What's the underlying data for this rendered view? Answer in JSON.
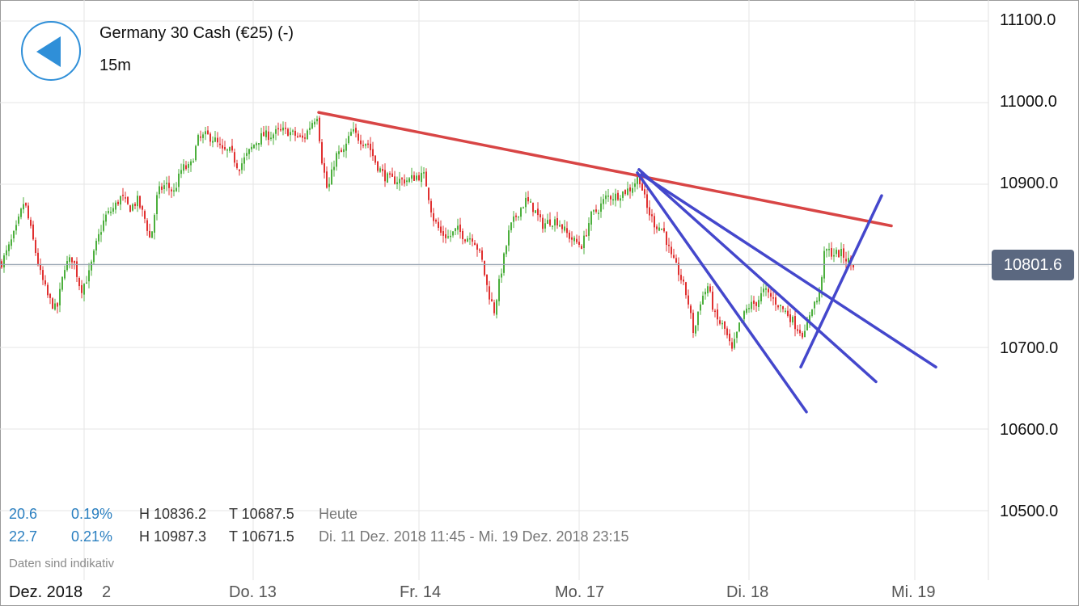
{
  "header": {
    "instrument": "Germany 30 Cash (€25) (-)",
    "timeframe": "15m"
  },
  "stats": {
    "today": {
      "change": "20.6",
      "change_pct": "0.19%",
      "high": "H 10836.2",
      "low": "T 10687.5",
      "range_label": "Heute"
    },
    "period": {
      "change": "22.7",
      "change_pct": "0.21%",
      "high": "H 10987.3",
      "low": "T 10671.5",
      "range_label": "Di. 11 Dez. 2018 11:45 - Mi. 19 Dez. 2018 23:15"
    }
  },
  "disclaimer": "Daten sind indikativ",
  "current_price": "10801.6",
  "colors": {
    "up": "#4caf3d",
    "down": "#e03030",
    "resistance": "#d84545",
    "trendlines": "#4447cc",
    "price_line": "#9aa6b4",
    "grid": "#e6e6e6",
    "accent": "#2f8fd8"
  },
  "chart_data": {
    "type": "candlestick",
    "ylim": [
      10450,
      11120
    ],
    "y_ticks": [
      "11100.0",
      "11000.0",
      "10900.0",
      "10800.0",
      "10700.0",
      "10600.0",
      "10500.0"
    ],
    "x_labels": [
      "Dez. 2018",
      "2",
      "Do. 13",
      "Fr. 14",
      "Mo. 17",
      "Di. 18",
      "Mi. 19"
    ],
    "current_price": 10801.6,
    "series": [
      {
        "name": "price",
        "path": [
          [
            0,
            10800
          ],
          [
            10,
            10820
          ],
          [
            20,
            10845
          ],
          [
            30,
            10880
          ],
          [
            40,
            10835
          ],
          [
            50,
            10790
          ],
          [
            60,
            10760
          ],
          [
            70,
            10745
          ],
          [
            80,
            10800
          ],
          [
            90,
            10810
          ],
          [
            100,
            10770
          ],
          [
            110,
            10790
          ],
          [
            120,
            10830
          ],
          [
            130,
            10860
          ],
          [
            140,
            10870
          ],
          [
            150,
            10885
          ],
          [
            160,
            10870
          ],
          [
            170,
            10880
          ],
          [
            180,
            10855
          ],
          [
            186,
            10830
          ],
          [
            195,
            10890
          ],
          [
            205,
            10900
          ],
          [
            215,
            10890
          ],
          [
            225,
            10920
          ],
          [
            235,
            10920
          ],
          [
            245,
            10955
          ],
          [
            255,
            10960
          ],
          [
            265,
            10955
          ],
          [
            275,
            10940
          ],
          [
            285,
            10940
          ],
          [
            295,
            10920
          ],
          [
            305,
            10935
          ],
          [
            315,
            10950
          ],
          [
            325,
            10960
          ],
          [
            335,
            10960
          ],
          [
            345,
            10965
          ],
          [
            355,
            10965
          ],
          [
            365,
            10960
          ],
          [
            375,
            10955
          ],
          [
            385,
            10975
          ],
          [
            392,
            10985
          ],
          [
            398,
            10930
          ],
          [
            405,
            10890
          ],
          [
            415,
            10935
          ],
          [
            425,
            10940
          ],
          [
            435,
            10965
          ],
          [
            445,
            10955
          ],
          [
            455,
            10950
          ],
          [
            465,
            10925
          ],
          [
            475,
            10910
          ],
          [
            485,
            10905
          ],
          [
            495,
            10905
          ],
          [
            505,
            10905
          ],
          [
            515,
            10910
          ],
          [
            525,
            10910
          ],
          [
            535,
            10860
          ],
          [
            545,
            10840
          ],
          [
            555,
            10835
          ],
          [
            565,
            10845
          ],
          [
            575,
            10835
          ],
          [
            585,
            10835
          ],
          [
            595,
            10810
          ],
          [
            603,
            10770
          ],
          [
            611,
            10745
          ],
          [
            620,
            10795
          ],
          [
            630,
            10845
          ],
          [
            640,
            10865
          ],
          [
            650,
            10880
          ],
          [
            660,
            10870
          ],
          [
            670,
            10850
          ],
          [
            680,
            10855
          ],
          [
            690,
            10855
          ],
          [
            700,
            10840
          ],
          [
            710,
            10830
          ],
          [
            720,
            10825
          ],
          [
            730,
            10860
          ],
          [
            740,
            10870
          ],
          [
            750,
            10885
          ],
          [
            760,
            10885
          ],
          [
            770,
            10890
          ],
          [
            780,
            10895
          ],
          [
            790,
            10910
          ],
          [
            800,
            10870
          ],
          [
            810,
            10850
          ],
          [
            820,
            10845
          ],
          [
            830,
            10810
          ],
          [
            840,
            10790
          ],
          [
            850,
            10760
          ],
          [
            858,
            10715
          ],
          [
            865,
            10755
          ],
          [
            875,
            10775
          ],
          [
            885,
            10735
          ],
          [
            895,
            10725
          ],
          [
            905,
            10695
          ],
          [
            915,
            10730
          ],
          [
            925,
            10750
          ],
          [
            935,
            10755
          ],
          [
            945,
            10770
          ],
          [
            955,
            10760
          ],
          [
            965,
            10750
          ],
          [
            975,
            10740
          ],
          [
            985,
            10725
          ],
          [
            995,
            10715
          ],
          [
            1003,
            10750
          ],
          [
            1012,
            10760
          ],
          [
            1020,
            10820
          ],
          [
            1030,
            10815
          ],
          [
            1040,
            10815
          ],
          [
            1050,
            10805
          ],
          [
            1057,
            10800
          ]
        ]
      }
    ],
    "annotations": [
      {
        "name": "resistance",
        "color": "resistance",
        "x1": 394,
        "y1": 10988,
        "x2": 1102,
        "y2": 10849
      },
      {
        "name": "fan-1",
        "color": "trendlines",
        "x1": 788,
        "y1": 10914,
        "x2": 997,
        "y2": 10621
      },
      {
        "name": "fan-2",
        "color": "trendlines",
        "x1": 790,
        "y1": 10918,
        "x2": 1083,
        "y2": 10658
      },
      {
        "name": "fan-3",
        "color": "trendlines",
        "x1": 793,
        "y1": 10912,
        "x2": 1157,
        "y2": 10676
      },
      {
        "name": "uptrend",
        "color": "trendlines",
        "x1": 990,
        "y1": 10676,
        "x2": 1090,
        "y2": 10886
      }
    ]
  }
}
